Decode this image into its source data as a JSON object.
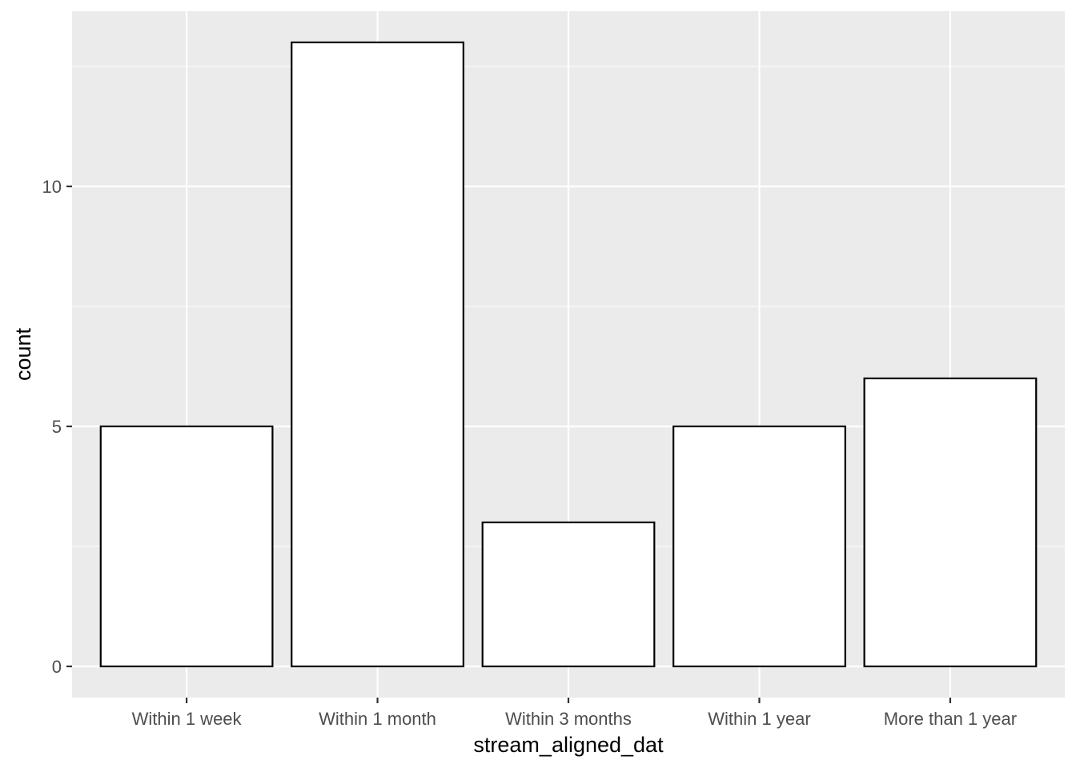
{
  "chart_data": {
    "type": "bar",
    "categories": [
      "Within 1 week",
      "Within 1 month",
      "Within 3 months",
      "Within 1 year",
      "More than 1 year"
    ],
    "values": [
      5,
      13,
      3,
      5,
      6
    ],
    "xlabel": "stream_aligned_dat",
    "ylabel": "count",
    "ylim": [
      -0.65,
      13.65
    ],
    "yticks": [
      0,
      5,
      10
    ],
    "y_minor_ticks": [
      2.5,
      7.5,
      12.5
    ],
    "grid": true,
    "legend": "none",
    "colors": {
      "panel_background": "#EBEBEB",
      "grid": "#FFFFFF",
      "bar_fill": "#FFFFFF",
      "bar_outline": "#000000",
      "tick_label": "#4D4D4D",
      "axis_title": "#000000"
    }
  }
}
